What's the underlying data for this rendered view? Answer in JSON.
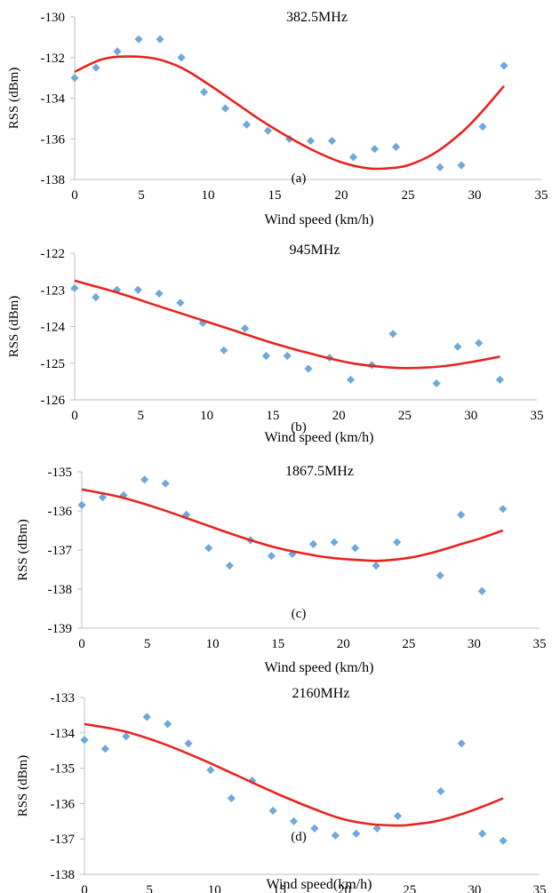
{
  "colors": {
    "points": "#6fa8dc",
    "fit": "#e8241f",
    "axis": "#bfbfbf",
    "text": "#000000"
  },
  "chart_data": [
    {
      "type": "scatter",
      "title": "382.5MHz",
      "panel_label": "(a)",
      "xlabel": "Wind speed (km/h)",
      "ylabel": "RSS (dBm)",
      "xlim": [
        0,
        35
      ],
      "ylim": [
        -138,
        -130
      ],
      "xticks": [
        "0",
        "5",
        "10",
        "15",
        "20",
        "25",
        "30",
        "35"
      ],
      "yticks": [
        "-130",
        "-132",
        "-134",
        "-136",
        "-138"
      ],
      "grid": false,
      "legend": "none",
      "series": [
        {
          "kind": "points",
          "marker": "diamond",
          "x": [
            0,
            1.6,
            3.2,
            4.8,
            6.4,
            8,
            9.7,
            11.3,
            12.9,
            14.5,
            16.1,
            17.7,
            19.3,
            20.9,
            22.5,
            24.1,
            27.4,
            29,
            30.6,
            32.2
          ],
          "y": [
            -133.0,
            -132.5,
            -131.7,
            -131.1,
            -131.1,
            -132.0,
            -133.7,
            -134.5,
            -135.3,
            -135.6,
            -136.0,
            -136.1,
            -136.1,
            -136.9,
            -136.5,
            -136.4,
            -137.4,
            -137.3,
            -135.4,
            -132.4
          ]
        },
        {
          "kind": "trendline",
          "x": [
            0,
            2,
            3.8,
            6,
            8,
            10,
            12,
            14,
            16,
            18,
            20,
            22,
            23.5,
            25,
            27,
            29,
            30.5,
            32.2
          ],
          "y": [
            -132.7,
            -132.1,
            -131.95,
            -132.05,
            -132.5,
            -133.3,
            -134.2,
            -135.1,
            -135.9,
            -136.6,
            -137.15,
            -137.45,
            -137.45,
            -137.3,
            -136.7,
            -135.7,
            -134.7,
            -133.4
          ]
        }
      ]
    },
    {
      "type": "scatter",
      "title": "945MHz",
      "panel_label": "(b)",
      "xlabel": "Wind speed (km/h)",
      "ylabel": "RSS (dBm)",
      "xlim": [
        0,
        35
      ],
      "ylim": [
        -126,
        -122
      ],
      "xticks": [
        "0",
        "5",
        "10",
        "15",
        "20",
        "25",
        "30",
        "35"
      ],
      "yticks": [
        "-122",
        "-123",
        "-124",
        "-125",
        "-126"
      ],
      "grid": false,
      "legend": "none",
      "series": [
        {
          "kind": "points",
          "marker": "diamond",
          "x": [
            0,
            1.6,
            3.2,
            4.8,
            6.4,
            8,
            9.7,
            11.3,
            12.9,
            14.5,
            16.1,
            17.7,
            19.3,
            20.9,
            22.5,
            24.1,
            27.4,
            29,
            30.6,
            32.2
          ],
          "y": [
            -122.95,
            -123.2,
            -123.0,
            -123.0,
            -123.1,
            -123.35,
            -123.9,
            -124.65,
            -124.05,
            -124.8,
            -124.8,
            -125.15,
            -124.85,
            -125.45,
            -125.05,
            -124.2,
            -125.55,
            -124.55,
            -124.45,
            -125.45
          ]
        },
        {
          "kind": "trendline",
          "x": [
            0,
            3,
            6,
            9,
            12,
            15,
            18,
            21,
            24,
            26,
            28,
            30,
            32.2
          ],
          "y": [
            -122.75,
            -123.05,
            -123.4,
            -123.75,
            -124.1,
            -124.45,
            -124.75,
            -125.0,
            -125.12,
            -125.13,
            -125.08,
            -124.97,
            -124.82
          ]
        }
      ]
    },
    {
      "type": "scatter",
      "title": "1867.5MHz",
      "panel_label": "(c)",
      "xlabel": "Wind speed (km/h)",
      "ylabel": "RSS (dBm)",
      "xlim": [
        0,
        35
      ],
      "ylim": [
        -139,
        -135
      ],
      "xticks": [
        "0",
        "5",
        "10",
        "15",
        "20",
        "25",
        "30",
        "35"
      ],
      "yticks": [
        "-135",
        "-136",
        "-137",
        "-138",
        "-139"
      ],
      "grid": false,
      "legend": "none",
      "series": [
        {
          "kind": "points",
          "marker": "diamond",
          "x": [
            0,
            1.6,
            3.2,
            4.8,
            6.4,
            8,
            9.7,
            11.3,
            12.9,
            14.5,
            16.1,
            17.7,
            19.3,
            20.9,
            22.5,
            24.1,
            27.4,
            29,
            30.6,
            32.2
          ],
          "y": [
            -135.85,
            -135.65,
            -135.6,
            -135.2,
            -135.3,
            -136.1,
            -136.95,
            -137.4,
            -136.75,
            -137.15,
            -137.1,
            -136.85,
            -136.8,
            -136.95,
            -137.4,
            -136.8,
            -137.65,
            -136.1,
            -138.05,
            -135.95
          ]
        },
        {
          "kind": "trendline",
          "x": [
            0,
            3,
            6,
            9,
            12,
            15,
            18,
            20,
            22,
            23,
            25,
            27,
            29,
            30.5,
            32.2
          ],
          "y": [
            -135.45,
            -135.65,
            -135.95,
            -136.3,
            -136.65,
            -136.95,
            -137.15,
            -137.23,
            -137.27,
            -137.27,
            -137.2,
            -137.05,
            -136.85,
            -136.7,
            -136.5
          ]
        }
      ]
    },
    {
      "type": "scatter",
      "title": "2160MHz",
      "panel_label": "(d)",
      "xlabel": "Wind speed(km/h)",
      "ylabel": "RSS (dBm)",
      "xlim": [
        0,
        35
      ],
      "ylim": [
        -138,
        -133
      ],
      "xticks": [
        "0",
        "5",
        "10",
        "15",
        "20",
        "25",
        "30",
        "35"
      ],
      "yticks": [
        "-133",
        "-134",
        "-135",
        "-136",
        "-137",
        "-138"
      ],
      "grid": false,
      "legend": "none",
      "series": [
        {
          "kind": "points",
          "marker": "diamond",
          "x": [
            0,
            1.6,
            3.2,
            4.8,
            6.4,
            8,
            9.7,
            11.3,
            12.9,
            14.5,
            16.1,
            17.7,
            19.3,
            20.9,
            22.5,
            24.1,
            27.4,
            29,
            30.6,
            32.2
          ],
          "y": [
            -134.2,
            -134.45,
            -134.1,
            -133.55,
            -133.75,
            -134.3,
            -135.05,
            -135.85,
            -135.35,
            -136.2,
            -136.5,
            -136.7,
            -136.9,
            -136.85,
            -136.7,
            -136.35,
            -135.65,
            -134.3,
            -136.85,
            -137.05
          ]
        },
        {
          "kind": "trendline",
          "x": [
            0,
            3,
            6,
            9,
            12,
            15,
            18,
            20,
            22,
            24,
            25,
            27,
            29,
            30.5,
            32.2
          ],
          "y": [
            -133.75,
            -133.95,
            -134.3,
            -134.75,
            -135.25,
            -135.75,
            -136.2,
            -136.45,
            -136.58,
            -136.62,
            -136.6,
            -136.5,
            -136.3,
            -136.1,
            -135.85
          ]
        }
      ]
    }
  ]
}
